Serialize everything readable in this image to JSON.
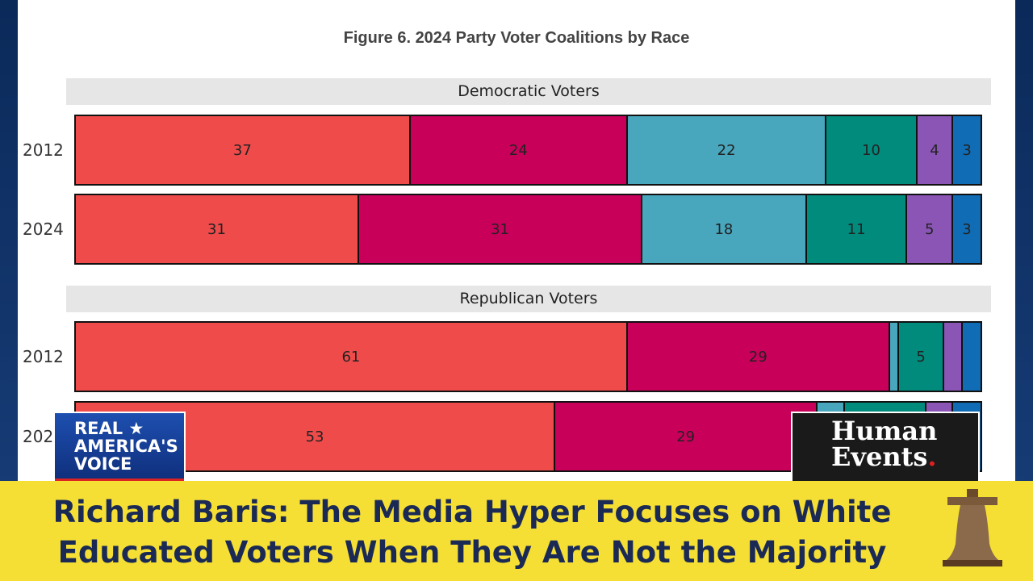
{
  "chart_data": {
    "type": "bar",
    "orientation": "horizontal-stacked-100",
    "title": "Figure 6. 2024 Party Voter Coalitions by Race",
    "colors": [
      "#ef4b4b",
      "#c8005a",
      "#48a6bd",
      "#008b7d",
      "#8a55b5",
      "#0f6cb5"
    ],
    "panels": [
      {
        "title": "Democratic Voters",
        "rows": [
          {
            "category": "2012",
            "values": [
              37,
              24,
              22,
              10,
              4,
              3
            ],
            "labels": [
              "37",
              "24",
              "22",
              "10",
              "4",
              "3"
            ]
          },
          {
            "category": "2024",
            "values": [
              31,
              31,
              18,
              11,
              5,
              3
            ],
            "labels": [
              "31",
              "31",
              "18",
              "11",
              "5",
              "3"
            ]
          }
        ]
      },
      {
        "title": "Republican Voters",
        "rows": [
          {
            "category": "2012",
            "values": [
              61,
              29,
              1,
              5,
              2,
              2
            ],
            "labels": [
              "61",
              "29",
              "",
              "5",
              "",
              ""
            ]
          },
          {
            "category": "2024",
            "values": [
              53,
              29,
              3,
              9,
              3,
              3
            ],
            "labels": [
              "53",
              "29",
              "",
              "",
              "",
              ""
            ],
            "category_visible": "202"
          }
        ]
      }
    ]
  },
  "overlay": {
    "headline_line1": "Richard Baris: The Media Hyper Focuses on White",
    "headline_line2": "Educated Voters When They Are Not the Majority",
    "logo_left": "REAL AMERICA'S VOICE",
    "logo_right": "Human Events.",
    "banner_color": "#f5df35"
  }
}
